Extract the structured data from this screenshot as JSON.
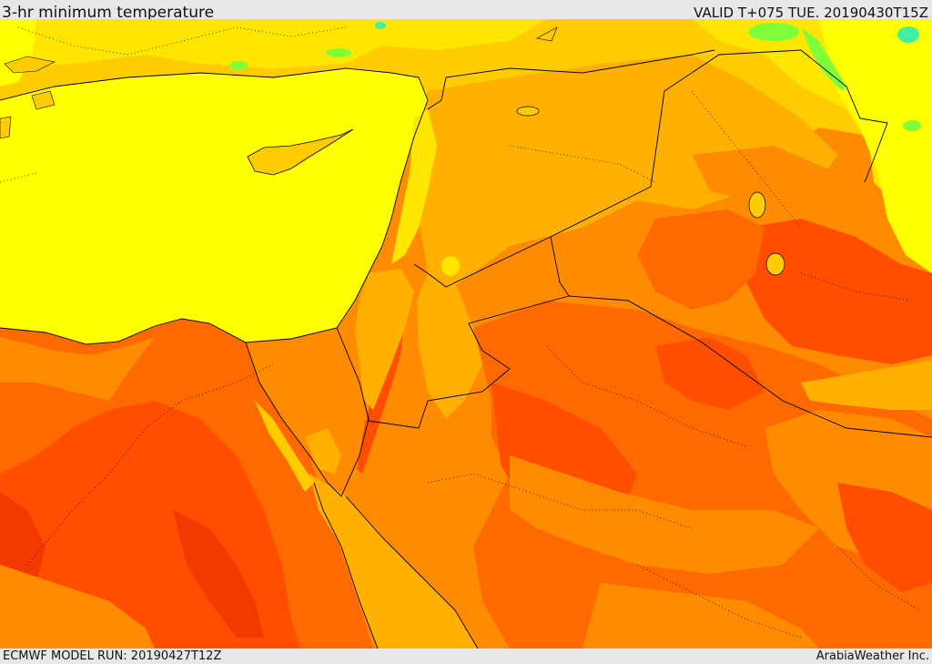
{
  "header": {
    "title": "3-hr minimum temperature",
    "valid": "VALID T+075 TUE. 20190430T15Z"
  },
  "footer": {
    "model_run": "ECMWF MODEL RUN: 20190427T12Z",
    "credit": "ArabiaWeather Inc."
  },
  "map": {
    "palette": {
      "sea_yellow": "#ffff00",
      "pale_yellow": "#ffe600",
      "yellow_orange": "#ffcc00",
      "light_orange": "#ffb000",
      "orange": "#ff8c00",
      "dark_orange": "#ff6a00",
      "red_orange": "#ff4e00",
      "deep_red": "#f23a00",
      "green": "#7fff3a",
      "cyan_green": "#40f0a0"
    }
  }
}
